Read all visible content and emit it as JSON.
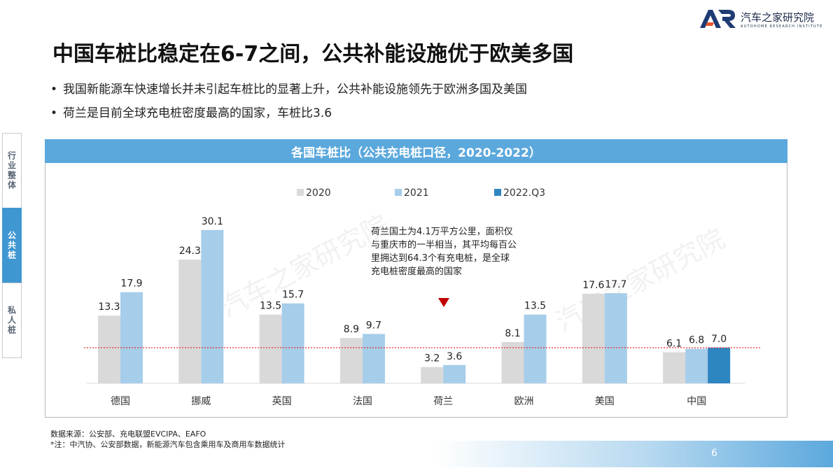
{
  "logo": {
    "cn": "汽车之家研究院",
    "en": "AUTOHOME RESEARCH INSTITUTE"
  },
  "title": "中国车桩比稳定在6-7之间，公共补能设施优于欧美多国",
  "bullets": [
    "我国新能源车快速增长并未引起车桩比的显著上升，公共补能设施领先于欧洲多国及美国",
    "荷兰是目前全球充电桩密度最高的国家，车桩比3.6"
  ],
  "side_tabs": [
    {
      "label": "行业整体",
      "active": false
    },
    {
      "label": "公共桩",
      "active": true
    },
    {
      "label": "私人桩",
      "active": false
    }
  ],
  "chart_header": "各国车桩比（公共充电桩口径，2020-2022）",
  "chart_data": {
    "type": "bar",
    "title": "各国车桩比（公共充电桩口径，2020-2022）",
    "categories": [
      "德国",
      "挪威",
      "英国",
      "法国",
      "荷兰",
      "欧洲",
      "美国",
      "中国"
    ],
    "series": [
      {
        "name": "2020",
        "color": "#d9d9d9",
        "values": [
          13.3,
          24.3,
          13.5,
          8.9,
          3.2,
          8.1,
          17.6,
          6.1
        ]
      },
      {
        "name": "2021",
        "color": "#a6cdea",
        "values": [
          17.9,
          30.1,
          15.7,
          9.7,
          3.6,
          13.5,
          17.7,
          6.8
        ]
      },
      {
        "name": "2022.Q3",
        "color": "#2e86c1",
        "values": [
          null,
          null,
          null,
          null,
          null,
          null,
          null,
          7.0
        ]
      }
    ],
    "reference_line": {
      "value": 7.0,
      "color": "#e03030",
      "style": "dotted"
    },
    "legend_position": "top-center",
    "grid": false,
    "ylim": [
      0,
      32
    ]
  },
  "annotation": {
    "text": "荷兰国土为4.1万平方公里，面积仅与重庆市的一半相当，其平均每百公里拥达到64.3个有充电桩，是全球充电桩密度最高的国家",
    "marker_color": "#c00000"
  },
  "watermark": "汽车之家研究院",
  "footer": {
    "source": "数据来源：公安部、充电联盟EVCIPA、EAFO",
    "note": "*注：中汽协、公安部数据，新能源汽车包含乘用车及商用车数据统计"
  },
  "page_number": "6"
}
